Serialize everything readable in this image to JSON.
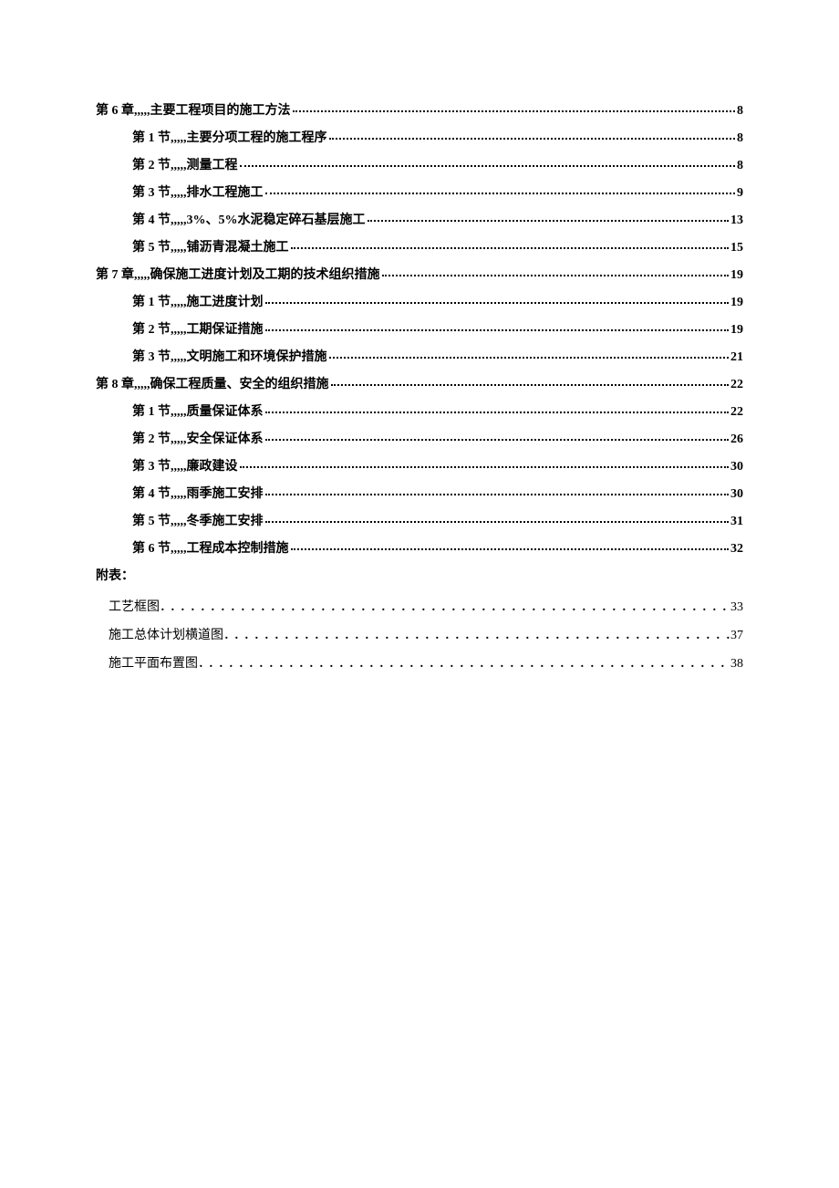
{
  "separator": ",,,,,",
  "toc": [
    {
      "level": 1,
      "label": "第 6 章",
      "title": "主要工程项目的施工方法",
      "page": "8"
    },
    {
      "level": 2,
      "label": "第 1 节",
      "title": "主要分项工程的施工程序",
      "page": "8"
    },
    {
      "level": 2,
      "label": "第 2 节",
      "title": "测量工程",
      "page": "8"
    },
    {
      "level": 2,
      "label": "第 3 节",
      "title": "排水工程施工",
      "page": "9"
    },
    {
      "level": 2,
      "label": "第 4 节",
      "title": "3%、5%水泥稳定碎石基层施工",
      "page": "13"
    },
    {
      "level": 2,
      "label": "第 5 节",
      "title": "铺沥青混凝土施工",
      "page": "15"
    },
    {
      "level": 1,
      "label": "第 7 章",
      "title": "确保施工进度计划及工期的技术组织措施",
      "page": "19"
    },
    {
      "level": 2,
      "label": "第 1 节",
      "title": "施工进度计划",
      "page": "19"
    },
    {
      "level": 2,
      "label": "第 2 节",
      "title": "工期保证措施",
      "page": "19"
    },
    {
      "level": 2,
      "label": "第 3 节",
      "title": "文明施工和环境保护措施",
      "page": "21"
    },
    {
      "level": 1,
      "label": "第 8 章",
      "title": "确保工程质量、安全的组织措施",
      "page": "22"
    },
    {
      "level": 2,
      "label": "第 1 节",
      "title": "质量保证体系",
      "page": "22"
    },
    {
      "level": 2,
      "label": "第 2 节",
      "title": "安全保证体系",
      "page": "26"
    },
    {
      "level": 2,
      "label": "第 3 节",
      "title": "廉政建设",
      "page": "30"
    },
    {
      "level": 2,
      "label": "第 4 节",
      "title": "雨季施工安排",
      "page": "30"
    },
    {
      "level": 2,
      "label": "第 5 节",
      "title": "冬季施工安排",
      "page": "31"
    },
    {
      "level": 2,
      "label": "第 6 节",
      "title": "工程成本控制措施",
      "page": "32"
    }
  ],
  "appendix_label": "附表：",
  "appendix": [
    {
      "title": "工艺框图",
      "page": "33"
    },
    {
      "title": "施工总体计划横道图",
      "page": "37"
    },
    {
      "title": "施工平面布置图",
      "page": "38"
    }
  ],
  "dots_sparse": "．．．．．．．．．．．．．．．．．．．．．．．．．．．．．．．．．．．．．．．．．．．．．．．．．．．．．．．．．．．．．．．．．．．．．．．．．．．．．．．．．．．．．．．．．．．．．．．．．．．．",
  "colors": {
    "background": "#ffffff",
    "text": "#000000"
  },
  "typography": {
    "font_family": "SimSun",
    "font_size_pt": 10.5,
    "line_height": 1.8
  }
}
